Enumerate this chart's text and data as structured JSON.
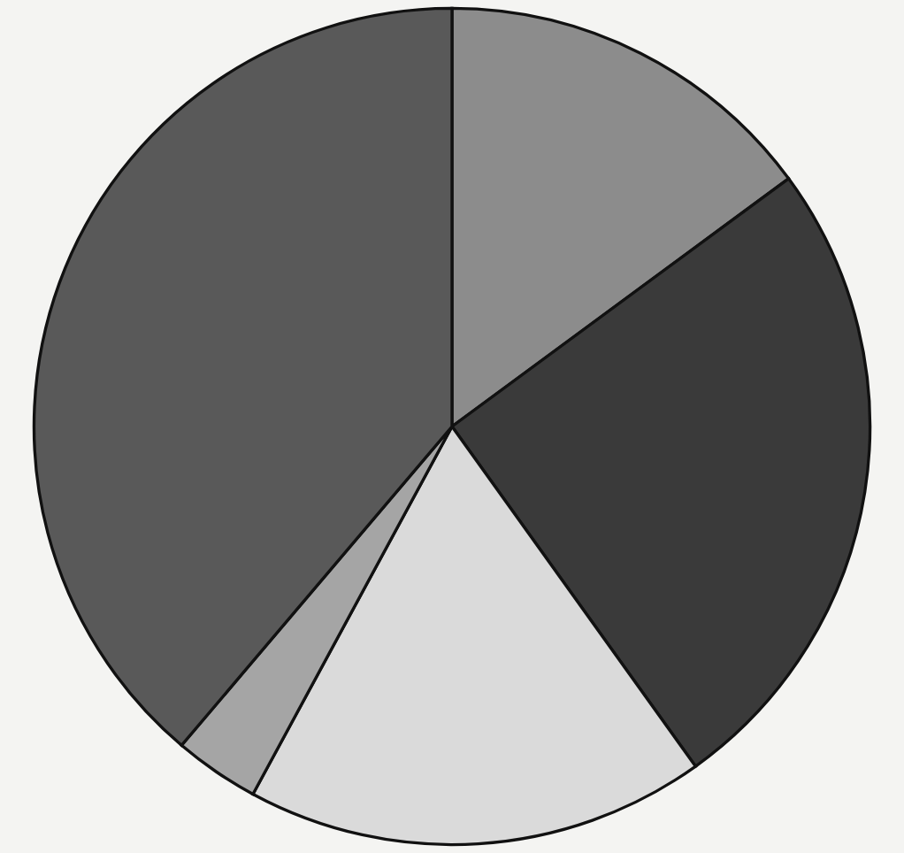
{
  "chart_data": {
    "type": "pie",
    "categories": [
      null,
      null,
      null,
      null,
      null
    ],
    "values": [
      14.9,
      25.2,
      17.8,
      3.3,
      38.8
    ],
    "colors": [
      "#8c8c8c",
      "#3a3a3a",
      "#dadada",
      "#a5a5a5",
      "#595959"
    ]
  }
}
